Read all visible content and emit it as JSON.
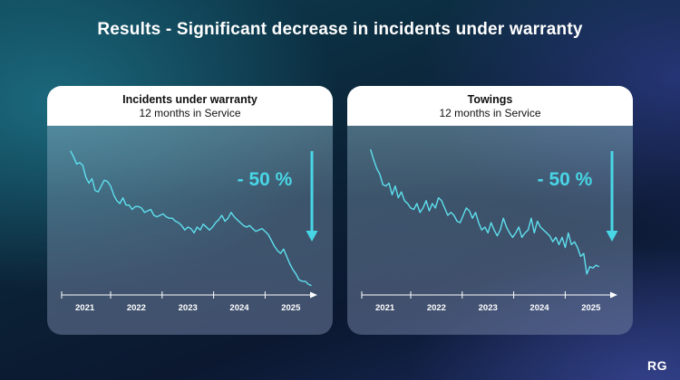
{
  "title": "Results - Significant decrease in incidents under warranty",
  "logo": "RG",
  "colors": {
    "line": "#5ee0ee",
    "label": "#48d6e6",
    "axis": "#ffffff"
  },
  "chart_data": [
    {
      "type": "line",
      "title": "Incidents under warranty",
      "subtitle": "12 months in Service",
      "annotation": "- 50 %",
      "xlim": [
        2020.55,
        2025.55
      ],
      "ylim": [
        0,
        100
      ],
      "tick_labels": [
        "2021",
        "2022",
        "2023",
        "2024",
        "2025"
      ],
      "x": [
        2020.72,
        2020.78,
        2020.84,
        2020.9,
        2020.96,
        2021.02,
        2021.08,
        2021.14,
        2021.2,
        2021.26,
        2021.32,
        2021.38,
        2021.44,
        2021.5,
        2021.56,
        2021.62,
        2021.68,
        2021.74,
        2021.8,
        2021.86,
        2021.92,
        2021.98,
        2022.04,
        2022.1,
        2022.16,
        2022.22,
        2022.28,
        2022.34,
        2022.4,
        2022.46,
        2022.52,
        2022.58,
        2022.64,
        2022.7,
        2022.76,
        2022.82,
        2022.88,
        2022.94,
        2023.0,
        2023.06,
        2023.12,
        2023.18,
        2023.24,
        2023.3,
        2023.36,
        2023.42,
        2023.48,
        2023.54,
        2023.6,
        2023.66,
        2023.72,
        2023.78,
        2023.84,
        2023.9,
        2023.96,
        2024.02,
        2024.08,
        2024.14,
        2024.2,
        2024.26,
        2024.32,
        2024.38,
        2024.44,
        2024.5,
        2024.56,
        2024.62,
        2024.68,
        2024.74,
        2024.8,
        2024.86,
        2024.92,
        2024.98,
        2025.04,
        2025.1,
        2025.16,
        2025.22,
        2025.28,
        2025.34,
        2025.4
      ],
      "values": [
        94,
        90,
        85,
        86,
        84,
        76,
        72,
        75,
        67,
        66,
        70,
        74,
        73,
        70,
        64,
        60,
        58,
        62,
        57,
        57,
        54,
        56,
        56,
        55,
        52,
        53,
        54,
        50,
        49,
        50,
        51,
        49,
        48,
        48,
        46,
        45,
        43,
        40,
        42,
        41,
        38,
        42,
        40,
        44,
        42,
        40,
        42,
        45,
        47,
        50,
        46,
        48,
        52,
        49,
        47,
        45,
        43,
        42,
        43,
        41,
        39,
        40,
        41,
        39,
        37,
        33,
        29,
        26,
        24,
        27,
        22,
        17,
        13,
        10,
        6,
        5,
        5,
        3,
        2
      ]
    },
    {
      "type": "line",
      "title": "Towings",
      "subtitle": "12 months in Service",
      "annotation": "- 50 %",
      "xlim": [
        2020.55,
        2025.55
      ],
      "ylim": [
        0,
        100
      ],
      "tick_labels": [
        "2021",
        "2022",
        "2023",
        "2024",
        "2025"
      ],
      "x": [
        2020.72,
        2020.78,
        2020.84,
        2020.9,
        2020.96,
        2021.02,
        2021.08,
        2021.14,
        2021.2,
        2021.26,
        2021.32,
        2021.38,
        2021.44,
        2021.5,
        2021.56,
        2021.62,
        2021.68,
        2021.74,
        2021.8,
        2021.86,
        2021.92,
        2021.98,
        2022.04,
        2022.1,
        2022.16,
        2022.22,
        2022.28,
        2022.34,
        2022.4,
        2022.46,
        2022.52,
        2022.58,
        2022.64,
        2022.7,
        2022.76,
        2022.82,
        2022.88,
        2022.94,
        2023.0,
        2023.06,
        2023.12,
        2023.18,
        2023.24,
        2023.3,
        2023.36,
        2023.42,
        2023.48,
        2023.54,
        2023.6,
        2023.66,
        2023.72,
        2023.78,
        2023.84,
        2023.9,
        2023.96,
        2024.02,
        2024.08,
        2024.14,
        2024.2,
        2024.26,
        2024.32,
        2024.38,
        2024.44,
        2024.5,
        2024.56,
        2024.62,
        2024.68,
        2024.74,
        2024.8,
        2024.86,
        2024.92,
        2024.98,
        2025.04,
        2025.1,
        2025.16
      ],
      "values": [
        95,
        88,
        82,
        78,
        71,
        70,
        72,
        64,
        70,
        62,
        66,
        60,
        58,
        55,
        54,
        58,
        52,
        55,
        60,
        53,
        58,
        55,
        62,
        60,
        55,
        50,
        52,
        50,
        46,
        45,
        50,
        55,
        53,
        48,
        52,
        45,
        40,
        42,
        38,
        45,
        40,
        36,
        40,
        48,
        42,
        38,
        35,
        38,
        42,
        35,
        38,
        40,
        48,
        38,
        46,
        42,
        40,
        38,
        36,
        32,
        35,
        30,
        35,
        28,
        38,
        30,
        32,
        28,
        22,
        24,
        10,
        15,
        14,
        16,
        15
      ]
    }
  ]
}
